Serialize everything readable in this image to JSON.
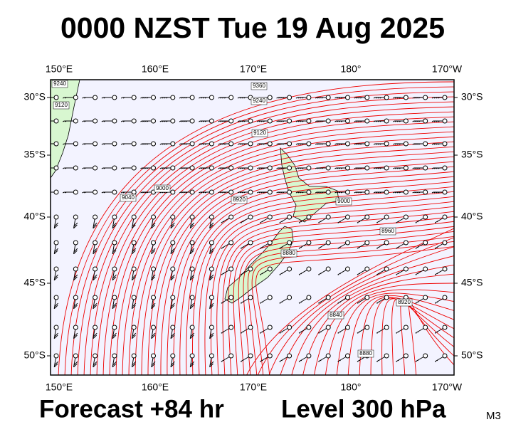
{
  "header": {
    "title": "0000 NZST Tue 19 Aug 2025"
  },
  "map": {
    "lon_labels": [
      "150°E",
      "160°E",
      "170°E",
      "180°",
      "170°W"
    ],
    "lat_labels": [
      "30°S",
      "35°S",
      "40°S",
      "45°S",
      "50°S"
    ],
    "contour_labels": [
      "9360",
      "9240",
      "9120",
      "9240",
      "9120",
      "9000",
      "8960",
      "8920",
      "8880",
      "8920",
      "8840",
      "8880",
      "9000",
      "9040"
    ]
  },
  "footer": {
    "forecast": "Forecast +84 hr",
    "level": "Level 300 hPa",
    "model": "M3"
  }
}
